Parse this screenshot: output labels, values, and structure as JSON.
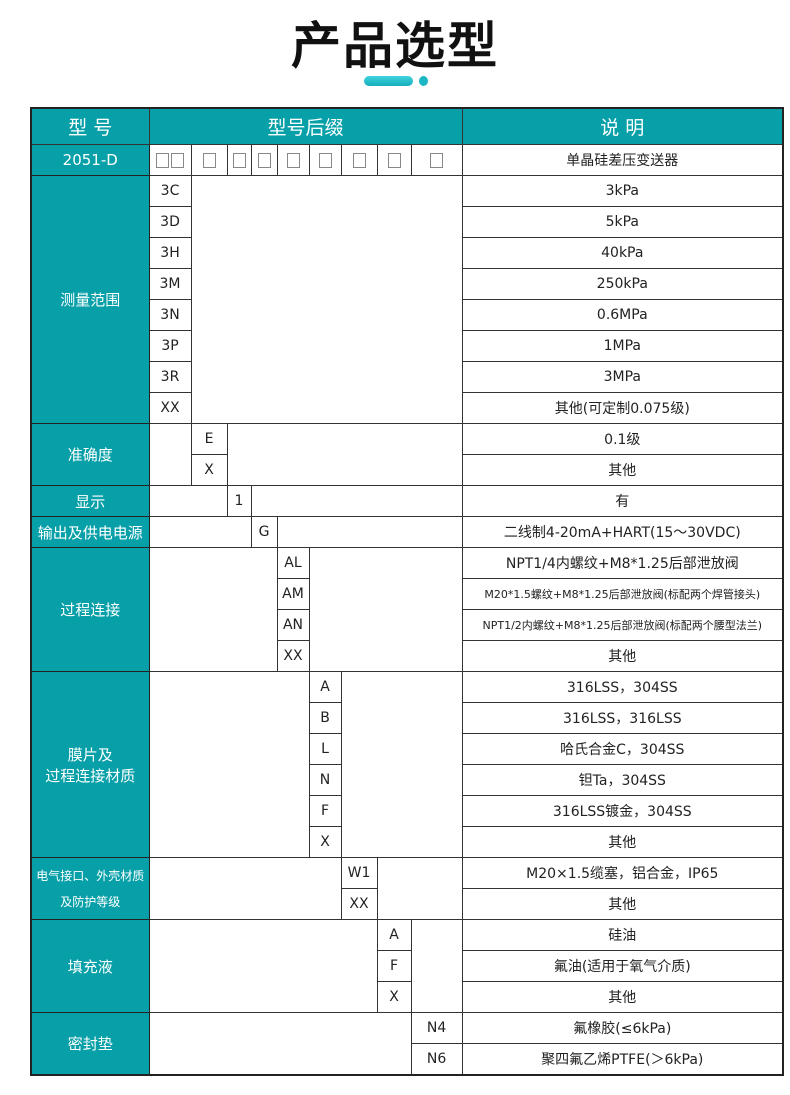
{
  "page_title": "产品选型",
  "accent_color": "#07a0a8",
  "header": {
    "model": "型 号",
    "suffix": "型号后缀",
    "description": "说 明"
  },
  "base": {
    "model": "2051-D",
    "boxes": [
      2,
      1,
      1,
      1,
      1,
      1,
      1,
      1,
      1
    ],
    "description": "单晶硅差压变送器"
  },
  "groups": [
    {
      "label": "测量范围",
      "col": 0,
      "rows": [
        {
          "code": "3C",
          "desc": "3kPa"
        },
        {
          "code": "3D",
          "desc": "5kPa"
        },
        {
          "code": "3H",
          "desc": "40kPa"
        },
        {
          "code": "3M",
          "desc": "250kPa"
        },
        {
          "code": "3N",
          "desc": "0.6MPa"
        },
        {
          "code": "3P",
          "desc": "1MPa"
        },
        {
          "code": "3R",
          "desc": "3MPa"
        },
        {
          "code": "XX",
          "desc": "其他(可定制0.075级)"
        }
      ]
    },
    {
      "label": "准确度",
      "col": 1,
      "rows": [
        {
          "code": "E",
          "desc": "0.1级"
        },
        {
          "code": "X",
          "desc": "其他"
        }
      ]
    },
    {
      "label": "显示",
      "col": 2,
      "rows": [
        {
          "code": "1",
          "desc": "有"
        }
      ]
    },
    {
      "label": "输出及供电电源",
      "col": 3,
      "rows": [
        {
          "code": "G",
          "desc": "二线制4-20mA+HART(15～30VDC)"
        }
      ]
    },
    {
      "label": "过程连接",
      "col": 4,
      "rows": [
        {
          "code": "AL",
          "desc": "NPT1/4内螺纹+M8*1.25后部泄放阀"
        },
        {
          "code": "AM",
          "desc": "M20*1.5螺纹+M8*1.25后部泄放阀(标配两个焊管接头)",
          "small": true
        },
        {
          "code": "AN",
          "desc": "NPT1/2内螺纹+M8*1.25后部泄放阀(标配两个腰型法兰)",
          "small": true
        },
        {
          "code": "XX",
          "desc": "其他"
        }
      ]
    },
    {
      "label": "膜片及\n过程连接材质",
      "col": 5,
      "rows": [
        {
          "code": "A",
          "desc": "316LSS，304SS"
        },
        {
          "code": "B",
          "desc": "316LSS，316LSS"
        },
        {
          "code": "L",
          "desc": "哈氏合金C，304SS"
        },
        {
          "code": "N",
          "desc": "钽Ta，304SS"
        },
        {
          "code": "F",
          "desc": "316LSS镀金，304SS"
        },
        {
          "code": "X",
          "desc": "其他"
        }
      ]
    },
    {
      "label": "电气接口、外壳材质\n及防护等级",
      "col": 6,
      "small": true,
      "rows": [
        {
          "code": "W1",
          "desc": "M20×1.5缆塞，铝合金，IP65"
        },
        {
          "code": "XX",
          "desc": "其他"
        }
      ]
    },
    {
      "label": "填充液",
      "col": 7,
      "rows": [
        {
          "code": "A",
          "desc": "硅油"
        },
        {
          "code": "F",
          "desc": "氟油(适用于氧气介质)"
        },
        {
          "code": "X",
          "desc": "其他"
        }
      ]
    },
    {
      "label": "密封垫",
      "col": 8,
      "rows": [
        {
          "code": "N4",
          "desc": "氟橡胶(≤6kPa)"
        },
        {
          "code": "N6",
          "desc": "聚四氟乙烯PTFE(＞6kPa)"
        }
      ]
    }
  ]
}
